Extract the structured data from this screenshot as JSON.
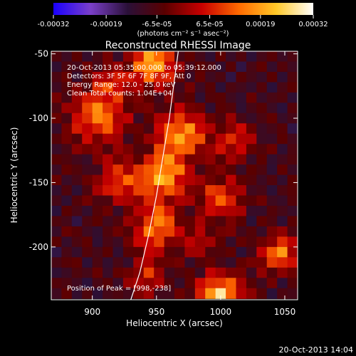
{
  "chart_data": {
    "type": "heatmap",
    "title": "Reconstructed RHESSI Image",
    "xlabel": "Heliocentric X (arcsec)",
    "ylabel": "Heliocentric Y (arcsec)",
    "xlim": [
      868,
      1060
    ],
    "ylim": [
      -241,
      -48
    ],
    "x_ticks": [
      900,
      950,
      1000,
      1050
    ],
    "y_ticks": [
      -50,
      -100,
      -150,
      -200
    ],
    "colorbar": {
      "unit_label": "(photons cm⁻² s⁻¹ asec⁻²)",
      "range": [
        -0.00032,
        0.00032
      ],
      "tick_values": [
        -0.00032,
        -0.00019,
        -6.5e-05,
        6.5e-05,
        0.00019,
        0.00032
      ],
      "tick_labels": [
        "-0.00032",
        "-0.00019",
        "-6.5e-05",
        "6.5e-05",
        "0.00019",
        "0.00032"
      ],
      "colors": [
        "#1a00ff",
        "#7a3fc8",
        "#2a1038",
        "#5a0000",
        "#c80000",
        "#ff6a00",
        "#ffc828",
        "#ffffff"
      ]
    },
    "info_lines": [
      "20-Oct-2013 05:35:00.000 to 05:39:12.000",
      "Detectors: 3F 5F 6F 7F 8F 9F, Att 0",
      "Energy Range: 12.0 - 25.0 keV",
      "Clean     Total counts: 1.04E+04"
    ],
    "peak_label": "Position of Peak = [998,-238]",
    "peak_position": [
      998,
      -238
    ],
    "limb_line": [
      [
        930,
        -241
      ],
      [
        937,
        -220
      ],
      [
        944,
        -190
      ],
      [
        950,
        -160
      ],
      [
        955,
        -130
      ],
      [
        960,
        -100
      ],
      [
        964,
        -70
      ],
      [
        967,
        -48
      ]
    ],
    "grid_x": [
      872,
      880,
      888,
      896,
      904,
      912,
      920,
      928,
      936,
      944,
      952,
      960,
      968,
      976,
      984,
      992,
      1000,
      1008,
      1016,
      1024,
      1032,
      1040,
      1048,
      1056
    ],
    "grid_y": [
      -52,
      -60,
      -68,
      -76,
      -84,
      -92,
      -100,
      -108,
      -116,
      -124,
      -132,
      -140,
      -148,
      -156,
      -164,
      -172,
      -180,
      -188,
      -196,
      -204,
      -212,
      -220,
      -228,
      -236
    ],
    "sources": [
      {
        "x": 948,
        "y": -58,
        "amp": 0.0003,
        "r": 12
      },
      {
        "x": 905,
        "y": -98,
        "amp": 0.00022,
        "r": 16
      },
      {
        "x": 970,
        "y": -112,
        "amp": 0.00026,
        "r": 13
      },
      {
        "x": 1010,
        "y": -118,
        "amp": 0.00015,
        "r": 11
      },
      {
        "x": 955,
        "y": -145,
        "amp": 0.00029,
        "r": 13
      },
      {
        "x": 920,
        "y": -150,
        "amp": 0.0002,
        "r": 11
      },
      {
        "x": 1000,
        "y": -162,
        "amp": 0.00018,
        "r": 12
      },
      {
        "x": 950,
        "y": -185,
        "amp": 0.00025,
        "r": 12
      },
      {
        "x": 985,
        "y": -195,
        "amp": 0.00014,
        "r": 8
      },
      {
        "x": 1045,
        "y": -205,
        "amp": 0.00023,
        "r": 10
      },
      {
        "x": 1000,
        "y": -238,
        "amp": 0.00032,
        "r": 12
      },
      {
        "x": 942,
        "y": -222,
        "amp": 0.00016,
        "r": 9
      },
      {
        "x": 915,
        "y": -72,
        "amp": 0.00014,
        "r": 8
      }
    ],
    "background_level": -9e-05,
    "noise": [
      [
        0.4,
        -0.2,
        0.7,
        -0.5,
        0.1,
        0.9,
        -0.8,
        0.3,
        -0.1,
        0.6,
        -0.4,
        0.2,
        -0.9,
        0.5,
        0.0,
        -0.6,
        0.8,
        -0.3,
        0.4,
        -0.7,
        0.1,
        0.6,
        -0.2,
        0.3
      ],
      [
        -0.6,
        0.3,
        -0.1,
        0.8,
        -0.4,
        0.2,
        0.5,
        -0.7,
        0.9,
        -0.3,
        0.1,
        -0.8,
        0.4,
        -0.2,
        0.7,
        0.3,
        -0.5,
        0.6,
        -0.9,
        0.2,
        0.8,
        -0.4,
        0.5,
        -0.1
      ],
      [
        0.2,
        0.7,
        -0.8,
        0.1,
        0.5,
        -0.6,
        0.3,
        0.9,
        -0.2,
        0.4,
        -0.7,
        0.6,
        0.0,
        -0.5,
        0.8,
        -0.1,
        0.3,
        -0.9,
        0.6,
        0.1,
        -0.3,
        0.7,
        -0.6,
        0.4
      ],
      [
        -0.3,
        0.1,
        0.5,
        -0.9,
        0.7,
        0.3,
        -0.4,
        0.2,
        0.6,
        -0.8,
        0.4,
        0.1,
        -0.5,
        0.9,
        -0.2,
        0.6,
        -0.7,
        0.3,
        0.0,
        -0.4,
        0.5,
        -0.8,
        0.2,
        0.7
      ],
      [
        0.8,
        -0.5,
        0.2,
        0.4,
        -0.1,
        -0.7,
        0.9,
        -0.3,
        0.5,
        0.1,
        -0.6,
        0.7,
        -0.2,
        0.3,
        -0.8,
        0.4,
        0.6,
        -0.1,
        -0.5,
        0.9,
        -0.3,
        0.2,
        0.4,
        -0.6
      ],
      [
        -0.1,
        0.6,
        -0.4,
        0.3,
        0.9,
        -0.2,
        0.1,
        -0.6,
        0.4,
        0.7,
        -0.3,
        -0.5,
        0.8,
        -0.1,
        0.2,
        -0.9,
        0.5,
        0.3,
        -0.7,
        0.1,
        0.6,
        -0.2,
        -0.8,
        0.5
      ],
      [
        0.5,
        -0.8,
        0.3,
        -0.2,
        0.6,
        0.4,
        -0.5,
        0.8,
        -0.9,
        0.2,
        0.7,
        -0.1,
        0.3,
        -0.6,
        0.4,
        0.1,
        -0.2,
        0.9,
        -0.4,
        -0.6,
        0.2,
        0.8,
        -0.3,
        0.1
      ],
      [
        -0.7,
        0.2,
        0.9,
        -0.4,
        -0.3,
        0.8,
        0.1,
        -0.2,
        0.3,
        -0.5,
        0.6,
        0.4,
        -0.8,
        0.7,
        -0.1,
        0.5,
        -0.6,
        -0.3,
        0.9,
        0.2,
        -0.4,
        0.1,
        0.6,
        -0.9
      ],
      [
        0.3,
        0.5,
        -0.6,
        0.7,
        -0.8,
        0.1,
        0.4,
        -0.9,
        0.2,
        0.6,
        -0.1,
        0.3,
        0.5,
        -0.4,
        0.9,
        -0.7,
        0.1,
        0.4,
        -0.2,
        0.8,
        -0.5,
        -0.3,
        0.7,
        0.0
      ],
      [
        -0.4,
        -0.1,
        0.8,
        0.2,
        0.3,
        -0.6,
        0.7,
        0.5,
        -0.3,
        -0.8,
        0.9,
        -0.2,
        0.1,
        0.6,
        -0.5,
        0.3,
        0.8,
        -0.7,
        0.4,
        -0.1,
        0.2,
        0.9,
        -0.6,
        0.3
      ],
      [
        0.6,
        0.3,
        -0.2,
        -0.7,
        0.5,
        0.9,
        -0.1,
        0.4,
        -0.6,
        0.3,
        0.2,
        0.8,
        -0.4,
        -0.9,
        0.1,
        0.7,
        -0.3,
        0.5,
        0.2,
        -0.8,
        0.6,
        -0.5,
        0.0,
        0.4
      ],
      [
        -0.2,
        0.8,
        0.4,
        -0.3,
        -0.9,
        0.2,
        0.6,
        -0.5,
        0.7,
        0.1,
        -0.4,
        -0.6,
        0.9,
        0.3,
        -0.7,
        0.2,
        0.4,
        -0.1,
        -0.8,
        0.5,
        0.3,
        -0.6,
        0.8,
        -0.2
      ],
      [
        0.9,
        -0.3,
        0.1,
        0.6,
        0.2,
        -0.4,
        -0.8,
        0.7,
        0.3,
        -0.2,
        0.5,
        0.1,
        -0.7,
        0.4,
        0.6,
        -0.3,
        -0.9,
        0.8,
        0.1,
        0.3,
        -0.2,
        0.4,
        -0.5,
        0.7
      ],
      [
        -0.5,
        0.4,
        -0.7,
        0.1,
        0.8,
        0.3,
        -0.2,
        -0.6,
        0.9,
        0.4,
        -0.8,
        0.2,
        0.6,
        -0.1,
        -0.3,
        0.9,
        0.2,
        -0.5,
        0.7,
        -0.4,
        0.1,
        -0.7,
        0.3,
        0.6
      ],
      [
        0.1,
        -0.6,
        0.5,
        0.9,
        -0.2,
        -0.8,
        0.4,
        0.3,
        -0.1,
        0.7,
        0.2,
        -0.9,
        0.5,
        0.8,
        -0.6,
        0.0,
        0.7,
        0.3,
        -0.4,
        0.2,
        0.9,
        -0.1,
        -0.3,
        0.5
      ],
      [
        -0.8,
        0.7,
        0.2,
        -0.5,
        0.4,
        0.6,
        -0.9,
        0.1,
        0.5,
        -0.3,
        0.8,
        0.4,
        -0.2,
        -0.7,
        0.3,
        0.6,
        -0.1,
        0.2,
        0.9,
        -0.6,
        -0.4,
        0.5,
        0.1,
        -0.3
      ],
      [
        0.4,
        0.1,
        -0.9,
        0.3,
        0.7,
        -0.1,
        0.2,
        0.8,
        -0.7,
        -0.4,
        0.3,
        0.6,
        -0.5,
        0.1,
        0.9,
        -0.2,
        -0.6,
        0.4,
        0.3,
        -0.9,
        0.7,
        0.2,
        -0.8,
        0.6
      ],
      [
        -0.3,
        0.9,
        0.6,
        -0.1,
        -0.5,
        0.4,
        0.8,
        -0.2,
        0.1,
        0.5,
        -0.9,
        0.3,
        0.7,
        -0.4,
        0.2,
        -0.8,
        0.5,
        0.9,
        -0.1,
        0.4,
        -0.7,
        0.3,
        0.6,
        -0.2
      ],
      [
        0.7,
        -0.4,
        0.3,
        0.8,
        -0.6,
        0.2,
        -0.3,
        0.5,
        0.9,
        -0.1,
        0.4,
        -0.7,
        0.2,
        0.6,
        -0.8,
        0.1,
        0.3,
        -0.5,
        0.8,
        0.2,
        -0.1,
        -0.9,
        0.4,
        0.7
      ],
      [
        -0.9,
        0.2,
        -0.4,
        0.5,
        0.1,
        0.7,
        -0.6,
        0.3,
        -0.2,
        0.8,
        0.6,
        -0.3,
        -0.1,
        0.9,
        0.4,
        -0.5,
        0.2,
        0.7,
        -0.8,
        -0.3,
        0.5,
        0.1,
        0.9,
        -0.4
      ],
      [
        0.2,
        0.6,
        0.8,
        -0.7,
        0.3,
        -0.5,
        0.1,
        -0.9,
        0.4,
        0.2,
        -0.2,
        0.5,
        0.9,
        -0.6,
        0.1,
        0.3,
        -0.4,
        -0.8,
        0.6,
        0.7,
        -0.2,
        0.4,
        -0.1,
        0.8
      ],
      [
        -0.6,
        -0.2,
        0.4,
        0.1,
        0.9,
        -0.3,
        0.7,
        0.2,
        -0.8,
        0.6,
        0.1,
        -0.4,
        0.3,
        0.5,
        -0.9,
        0.8,
        0.0,
        -0.2,
        0.4,
        -0.5,
        0.9,
        -0.6,
        0.2,
        0.3
      ],
      [
        0.5,
        0.3,
        -0.1,
        -0.8,
        0.2,
        0.6,
        -0.4,
        0.9,
        0.1,
        -0.6,
        0.7,
        0.2,
        -0.5,
        0.3,
        0.8,
        -0.1,
        -0.7,
        0.6,
        0.2,
        0.1,
        -0.3,
        0.8,
        -0.9,
        0.4
      ],
      [
        -0.1,
        0.8,
        -0.5,
        0.4,
        -0.7,
        0.1,
        0.3,
        -0.2,
        0.6,
        0.9,
        -0.4,
        -0.1,
        0.8,
        -0.3,
        0.5,
        0.2,
        0.9,
        -0.6,
        -0.2,
        0.7,
        0.4,
        -0.8,
        0.3,
        0.1
      ]
    ]
  },
  "footer": {
    "timestamp": "20-Oct-2013 14:04"
  }
}
